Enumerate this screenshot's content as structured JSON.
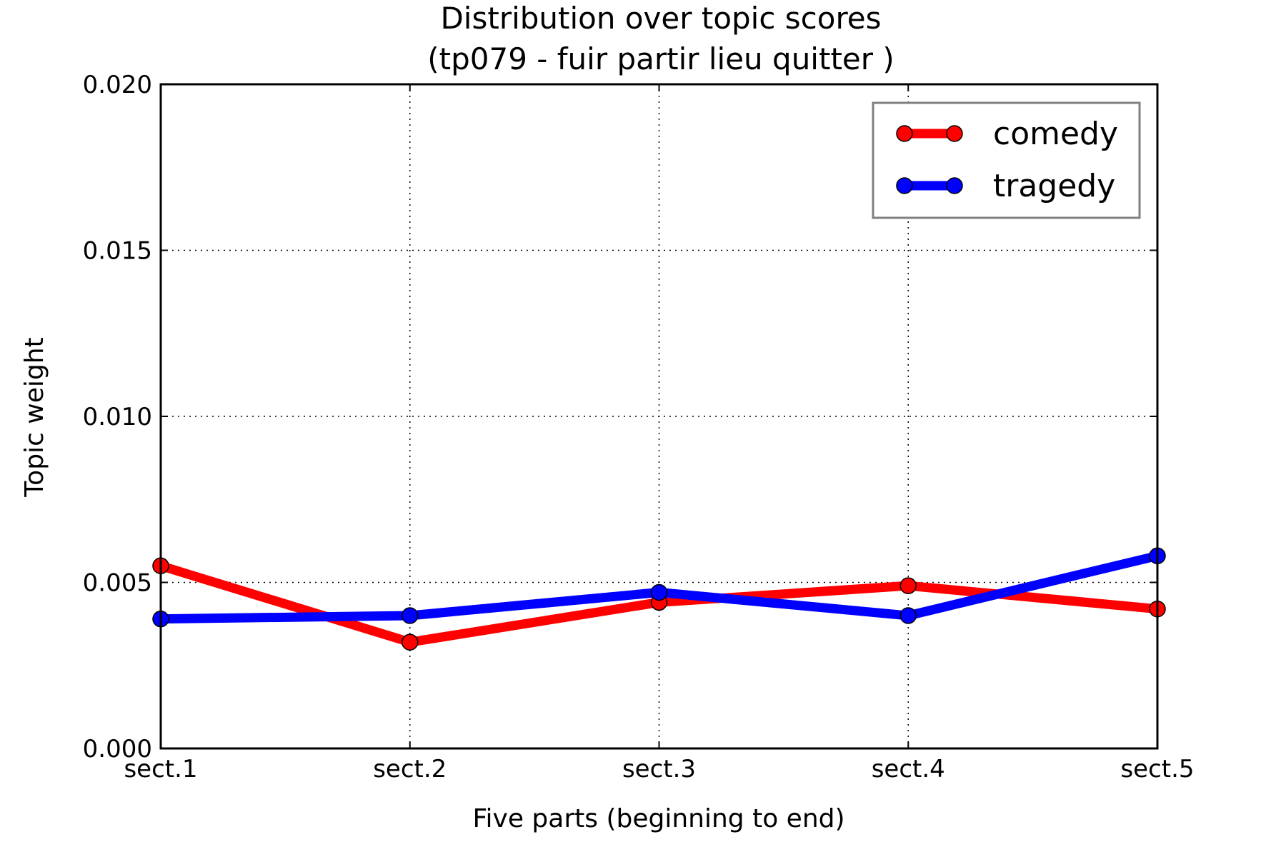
{
  "chart_data": {
    "type": "line",
    "title": "Distribution over topic scores",
    "subtitle": "(tp079 - fuir partir lieu quitter )",
    "xlabel": "Five parts (beginning to end)",
    "ylabel": "Topic weight",
    "categories": [
      "sect.1",
      "sect.2",
      "sect.3",
      "sect.4",
      "sect.5"
    ],
    "ylim": [
      0,
      0.02
    ],
    "yticks": [
      "0.000",
      "0.005",
      "0.010",
      "0.015",
      "0.020"
    ],
    "grid": true,
    "legend_position": "top-right",
    "series": [
      {
        "name": "comedy",
        "color": "#ff0000",
        "values": [
          0.0055,
          0.0032,
          0.0044,
          0.0049,
          0.0042
        ]
      },
      {
        "name": "tragedy",
        "color": "#0000ff",
        "values": [
          0.0039,
          0.004,
          0.0047,
          0.004,
          0.0058
        ]
      }
    ]
  }
}
